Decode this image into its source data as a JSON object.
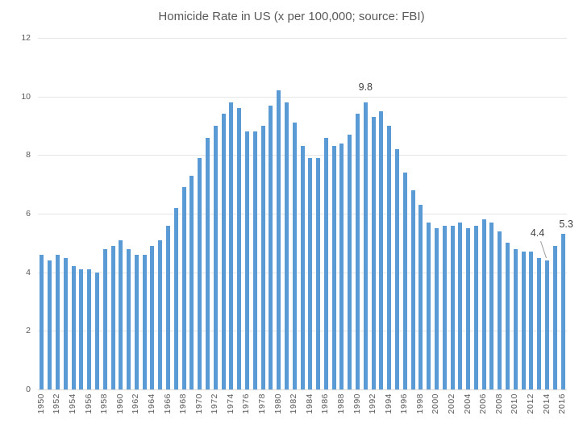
{
  "title": "Homicide Rate in US (x per 100,000; source: FBI)",
  "colors": {
    "bar": "#5B9BD5",
    "gridline": "#E6E6E6",
    "axis_line": "#D9D9D9",
    "tick_text": "#595959",
    "title_text": "#595959",
    "annotation_text": "#404040",
    "leader_line": "#999999",
    "background": "#FFFFFF"
  },
  "chart_data": {
    "type": "bar",
    "title": "Homicide Rate in US (x per 100,000; source: FBI)",
    "xlabel": "",
    "ylabel": "",
    "ylim": [
      0,
      12
    ],
    "yticks": [
      0,
      2,
      4,
      6,
      8,
      10,
      12
    ],
    "xtick_label_every": 2,
    "grid": "horizontal",
    "legend": "none",
    "categories": [
      1950,
      1951,
      1952,
      1953,
      1954,
      1955,
      1956,
      1957,
      1958,
      1959,
      1960,
      1961,
      1962,
      1963,
      1964,
      1965,
      1966,
      1967,
      1968,
      1969,
      1970,
      1971,
      1972,
      1973,
      1974,
      1975,
      1976,
      1977,
      1978,
      1979,
      1980,
      1981,
      1982,
      1983,
      1984,
      1985,
      1986,
      1987,
      1988,
      1989,
      1990,
      1991,
      1992,
      1993,
      1994,
      1995,
      1996,
      1997,
      1998,
      1999,
      2000,
      2001,
      2002,
      2003,
      2004,
      2005,
      2006,
      2007,
      2008,
      2009,
      2010,
      2011,
      2012,
      2013,
      2014,
      2015,
      2016
    ],
    "values": [
      4.6,
      4.4,
      4.6,
      4.5,
      4.2,
      4.1,
      4.1,
      4.0,
      4.8,
      4.9,
      5.1,
      4.8,
      4.6,
      4.6,
      4.9,
      5.1,
      5.6,
      6.2,
      6.9,
      7.3,
      7.9,
      8.6,
      9.0,
      9.4,
      9.8,
      9.6,
      8.8,
      8.8,
      9.0,
      9.7,
      10.2,
      9.8,
      9.1,
      8.3,
      7.9,
      7.9,
      8.6,
      8.3,
      8.4,
      8.7,
      9.4,
      9.8,
      9.3,
      9.5,
      9.0,
      8.2,
      7.4,
      6.8,
      6.3,
      5.7,
      5.5,
      5.6,
      5.6,
      5.7,
      5.5,
      5.6,
      5.8,
      5.7,
      5.4,
      5.0,
      4.8,
      4.7,
      4.7,
      4.5,
      4.4,
      4.9,
      5.3
    ],
    "annotations": [
      {
        "text": "9.8",
        "category": 1991,
        "value": 9.8,
        "leader_line": false
      },
      {
        "text": "4.4",
        "category": 2014,
        "value": 4.4,
        "leader_line": true
      },
      {
        "text": "5.3",
        "category": 2016,
        "value": 5.3,
        "leader_line": false
      }
    ]
  }
}
